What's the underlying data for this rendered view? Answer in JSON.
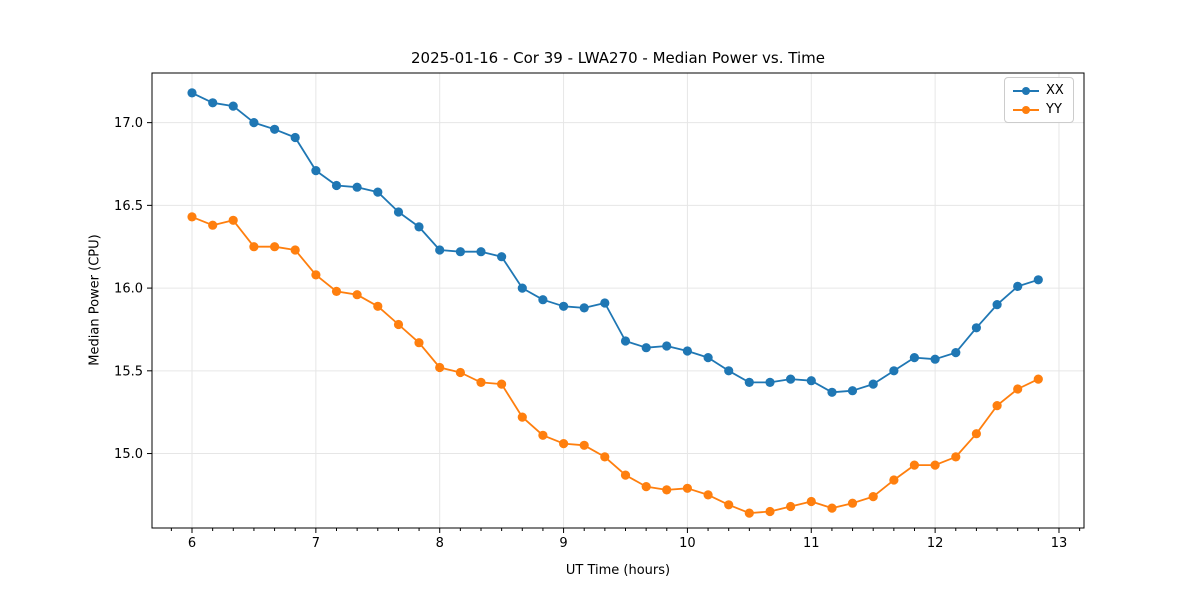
{
  "figure": {
    "title": "2025-01-16 - Cor 39 - LWA270 - Median Power vs. Time",
    "xlabel": "UT Time (hours)",
    "ylabel": "Median Power (CPU)"
  },
  "chart_data": {
    "type": "line",
    "title": "2025-01-16 - Cor 39 - LWA270 - Median Power vs. Time",
    "xlabel": "UT Time (hours)",
    "ylabel": "Median Power (CPU)",
    "xlim": [
      5.677,
      13.202
    ],
    "ylim": [
      14.55,
      17.3
    ],
    "x_ticks": [
      6,
      7,
      8,
      9,
      10,
      11,
      12,
      13
    ],
    "x_tick_labels": [
      "6",
      "7",
      "8",
      "9",
      "10",
      "11",
      "12",
      "13"
    ],
    "x_minor_step": 0.166667,
    "y_ticks": [
      15.0,
      15.5,
      16.0,
      16.5,
      17.0
    ],
    "y_tick_labels": [
      "15.0",
      "15.5",
      "16.0",
      "16.5",
      "17.0"
    ],
    "grid": true,
    "grid_color": "#e6e6e6",
    "legend_position": "upper right",
    "marker": "circle",
    "x": [
      6.0,
      6.167,
      6.333,
      6.5,
      6.667,
      6.833,
      7.0,
      7.167,
      7.333,
      7.5,
      7.667,
      7.833,
      8.0,
      8.167,
      8.333,
      8.5,
      8.667,
      8.833,
      9.0,
      9.167,
      9.333,
      9.5,
      9.667,
      9.833,
      10.0,
      10.167,
      10.333,
      10.5,
      10.667,
      10.833,
      11.0,
      11.167,
      11.333,
      11.5,
      11.667,
      11.833,
      12.0,
      12.167,
      12.333,
      12.5,
      12.667,
      12.833
    ],
    "series": [
      {
        "name": "XX",
        "color": "#1f77b4",
        "values": [
          17.18,
          17.12,
          17.1,
          17.0,
          16.96,
          16.91,
          16.71,
          16.62,
          16.61,
          16.58,
          16.46,
          16.37,
          16.23,
          16.22,
          16.22,
          16.19,
          16.0,
          15.93,
          15.89,
          15.88,
          15.91,
          15.68,
          15.64,
          15.65,
          15.62,
          15.58,
          15.5,
          15.43,
          15.43,
          15.45,
          15.44,
          15.37,
          15.38,
          15.42,
          15.5,
          15.58,
          15.57,
          15.61,
          15.76,
          15.9,
          16.01,
          16.05
        ]
      },
      {
        "name": "YY",
        "color": "#ff7f0e",
        "values": [
          16.43,
          16.38,
          16.41,
          16.25,
          16.25,
          16.23,
          16.08,
          15.98,
          15.96,
          15.89,
          15.78,
          15.67,
          15.52,
          15.49,
          15.43,
          15.42,
          15.22,
          15.11,
          15.06,
          15.05,
          14.98,
          14.87,
          14.8,
          14.78,
          14.79,
          14.75,
          14.69,
          14.64,
          14.65,
          14.68,
          14.71,
          14.67,
          14.7,
          14.74,
          14.84,
          14.93,
          14.93,
          14.98,
          15.12,
          15.29,
          15.39,
          15.45
        ]
      }
    ]
  }
}
